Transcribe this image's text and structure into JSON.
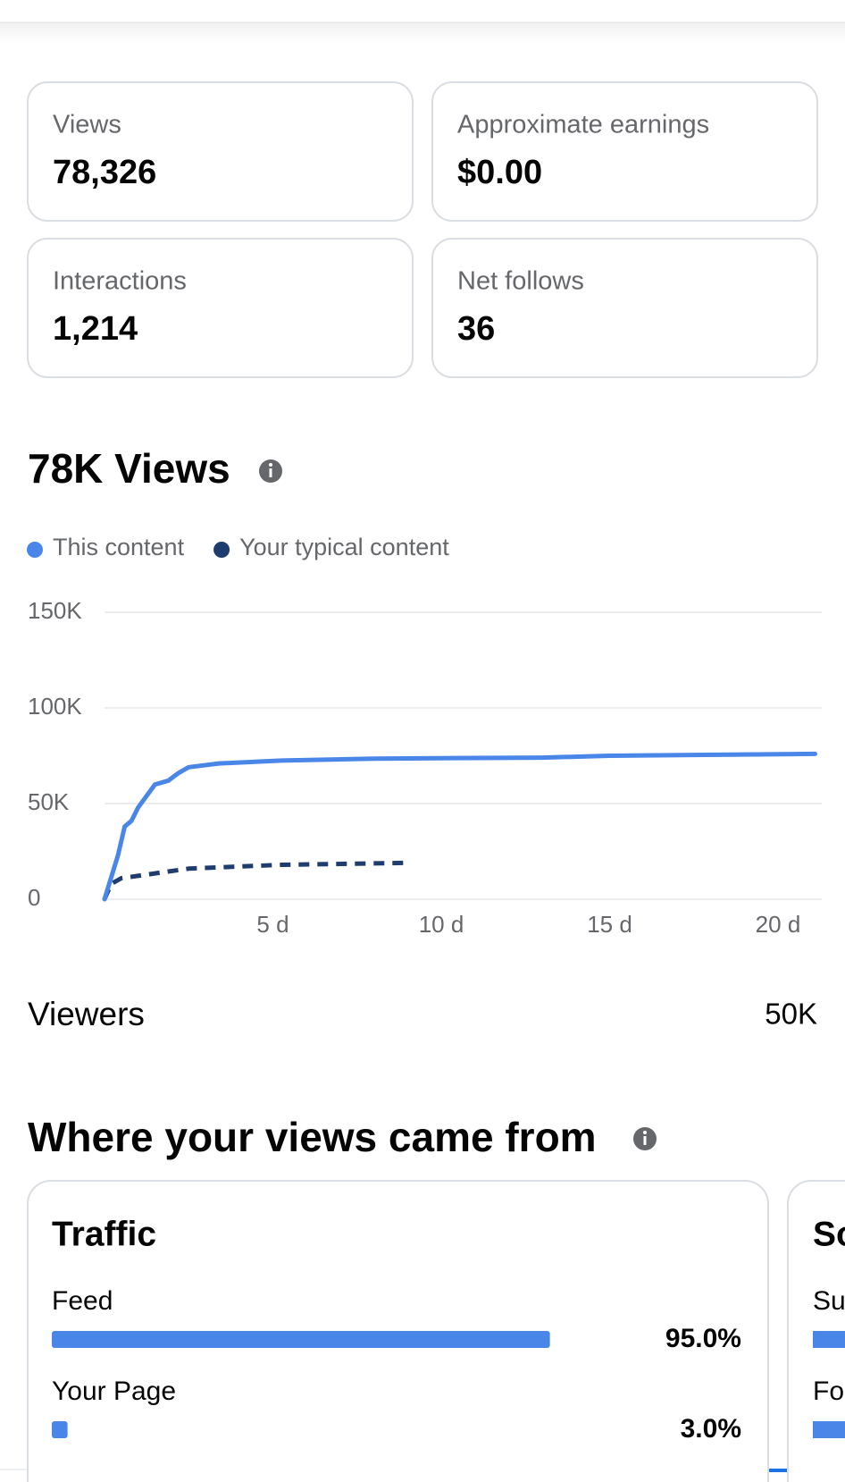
{
  "stats": [
    {
      "label": "Views",
      "value": "78,326"
    },
    {
      "label": "Approximate earnings",
      "value": "$0.00"
    },
    {
      "label": "Interactions",
      "value": "1,214"
    },
    {
      "label": "Net follows",
      "value": "36"
    }
  ],
  "chart_data": {
    "type": "line",
    "title": "78K Views",
    "series": [
      {
        "name": "This content",
        "color": "#4a86e8",
        "dashed": false,
        "x": [
          0,
          0.4,
          0.6,
          0.8,
          1.0,
          1.5,
          1.9,
          2.2,
          2.5,
          3.4,
          5.25,
          8,
          13,
          15,
          21.1
        ],
        "values": [
          0,
          23000,
          38000,
          41000,
          48000,
          60000,
          62000,
          66000,
          69000,
          71000,
          72500,
          73500,
          74000,
          75000,
          76000
        ]
      },
      {
        "name": "Your typical content",
        "color": "#1f3c6e",
        "dashed": true,
        "x": [
          0,
          0.2,
          0.5,
          2.5,
          5.25,
          9.1
        ],
        "values": [
          0,
          8000,
          11000,
          16000,
          18000,
          19000
        ]
      }
    ],
    "xlim": [
      0,
      21.3
    ],
    "ylim": [
      0,
      150000
    ],
    "xticks": [
      {
        "value": 5,
        "label": "5 d"
      },
      {
        "value": 10,
        "label": "10 d"
      },
      {
        "value": 15,
        "label": "15 d"
      },
      {
        "value": 20,
        "label": "20 d"
      }
    ],
    "yticks": [
      0,
      {
        "value": 50000,
        "label": "50K"
      },
      {
        "value": 100000,
        "label": "100K"
      },
      {
        "value": 150000,
        "label": "150K"
      }
    ],
    "grid": true
  },
  "viewers": {
    "label": "Viewers",
    "value": "50K"
  },
  "sources": {
    "title": "Where your views came from",
    "traffic": {
      "title": "Traffic",
      "color": "#4a86e8",
      "rows": [
        {
          "label": "Feed",
          "value": 95.0,
          "value_label": "95.0%"
        },
        {
          "label": "Your Page",
          "value": 3.0,
          "value_label": "3.0%"
        }
      ]
    },
    "second_card": {
      "title": "So",
      "rows": [
        "Su",
        "Fo"
      ]
    }
  }
}
